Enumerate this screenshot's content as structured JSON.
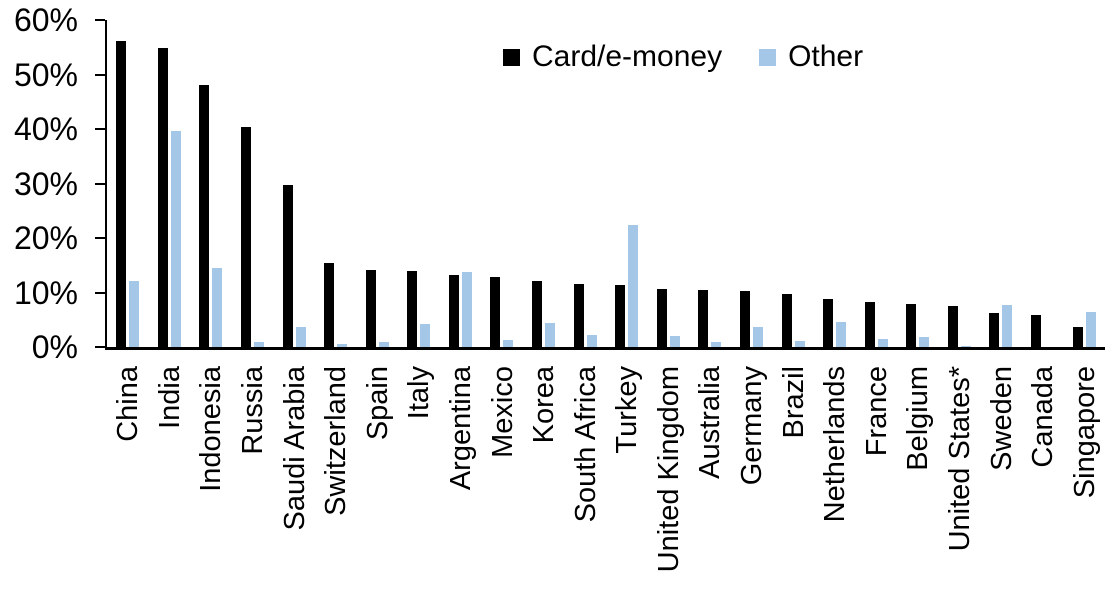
{
  "chart_data": {
    "type": "bar",
    "title": "",
    "xlabel": "",
    "ylabel": "",
    "ylim": [
      0,
      60
    ],
    "ytick_step": 10,
    "ytick_labels": [
      "0%",
      "10%",
      "20%",
      "30%",
      "40%",
      "50%",
      "60%"
    ],
    "grid": false,
    "legend_position": "top-center",
    "x_tick_label_rotation": 90,
    "categories": [
      "China",
      "India",
      "Indonesia",
      "Russia",
      "Saudi Arabia",
      "Switzerland",
      "Spain",
      "Italy",
      "Argentina",
      "Mexico",
      "Korea",
      "South Africa",
      "Turkey",
      "United Kingdom",
      "Australia",
      "Germany",
      "Brazil",
      "Netherlands",
      "France",
      "Belgium",
      "United States*",
      "Sweden",
      "Canada",
      "Singapore"
    ],
    "series": [
      {
        "name": "Card/e-money",
        "color": "#000000",
        "values": [
          56.1,
          54.9,
          48.1,
          40.3,
          29.7,
          15.5,
          14.1,
          14.0,
          13.2,
          12.8,
          12.1,
          11.5,
          11.3,
          10.7,
          10.4,
          10.2,
          9.7,
          8.8,
          8.3,
          7.9,
          7.5,
          6.3,
          5.9,
          3.7
        ]
      },
      {
        "name": "Other",
        "color": "#A4C7E7",
        "values": [
          12.2,
          39.6,
          14.5,
          1.0,
          3.7,
          0.6,
          0.9,
          4.3,
          13.7,
          1.2,
          4.4,
          2.2,
          22.3,
          2.1,
          0.9,
          3.6,
          1.1,
          4.6,
          1.4,
          1.8,
          0.2,
          7.7,
          0.0,
          6.5
        ]
      }
    ]
  }
}
